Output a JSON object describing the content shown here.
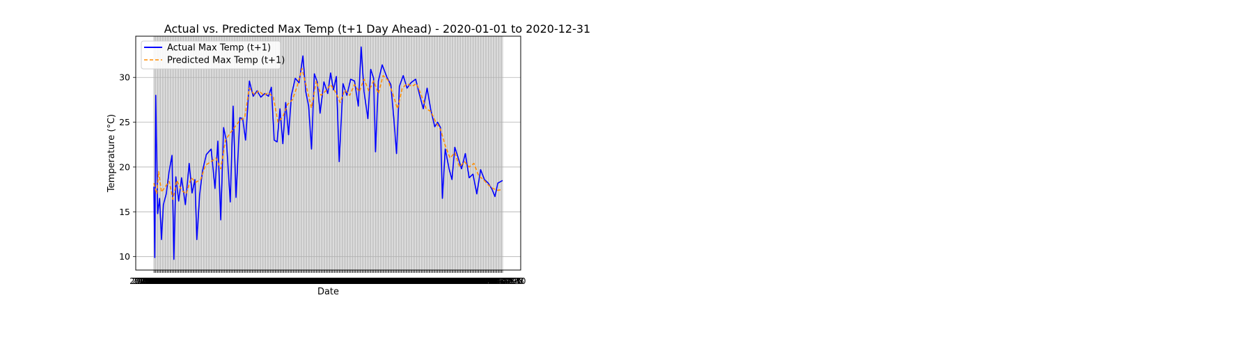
{
  "chart_data": {
    "type": "line",
    "title": "Actual vs. Predicted Max Temp (t+1 Day Ahead) - 2020-01-01 to 2020-12-31",
    "xlabel": "Date",
    "ylabel": "Temperature (°C)",
    "x_range": [
      "2020-01-01",
      "2020-12-31"
    ],
    "ylim": [
      8.5,
      34.6
    ],
    "yticks": [
      10,
      15,
      20,
      25,
      30
    ],
    "grid": true,
    "legend_position": "top-left",
    "series": [
      {
        "name": "Actual Max Temp (t+1)",
        "color": "#0000ff",
        "style": "solid",
        "points": [
          [
            "2020-01-01",
            17.8
          ],
          [
            "2020-01-02",
            9.9
          ],
          [
            "2020-01-03",
            28.0
          ],
          [
            "2020-01-05",
            14.8
          ],
          [
            "2020-01-07",
            16.5
          ],
          [
            "2020-01-09",
            11.9
          ],
          [
            "2020-01-11",
            15.8
          ],
          [
            "2020-01-14",
            17.0
          ],
          [
            "2020-01-17",
            19.5
          ],
          [
            "2020-01-20",
            21.3
          ],
          [
            "2020-01-22",
            9.7
          ],
          [
            "2020-01-24",
            18.9
          ],
          [
            "2020-01-27",
            16.2
          ],
          [
            "2020-01-30",
            18.8
          ],
          [
            "2020-02-03",
            15.8
          ],
          [
            "2020-02-07",
            20.4
          ],
          [
            "2020-02-10",
            17.1
          ],
          [
            "2020-02-13",
            18.6
          ],
          [
            "2020-02-15",
            11.9
          ],
          [
            "2020-02-18",
            17.0
          ],
          [
            "2020-02-21",
            19.6
          ],
          [
            "2020-02-25",
            21.4
          ],
          [
            "2020-03-01",
            22.0
          ],
          [
            "2020-03-05",
            17.6
          ],
          [
            "2020-03-08",
            22.9
          ],
          [
            "2020-03-11",
            14.1
          ],
          [
            "2020-03-14",
            24.4
          ],
          [
            "2020-03-17",
            22.9
          ],
          [
            "2020-03-21",
            16.1
          ],
          [
            "2020-03-24",
            26.8
          ],
          [
            "2020-03-27",
            16.6
          ],
          [
            "2020-03-31",
            25.5
          ],
          [
            "2020-04-03",
            25.4
          ],
          [
            "2020-04-06",
            23.0
          ],
          [
            "2020-04-10",
            29.6
          ],
          [
            "2020-04-14",
            27.9
          ],
          [
            "2020-04-18",
            28.5
          ],
          [
            "2020-04-22",
            27.8
          ],
          [
            "2020-04-26",
            28.2
          ],
          [
            "2020-04-30",
            27.9
          ],
          [
            "2020-05-03",
            28.9
          ],
          [
            "2020-05-06",
            23.0
          ],
          [
            "2020-05-09",
            22.8
          ],
          [
            "2020-05-12",
            26.5
          ],
          [
            "2020-05-15",
            22.6
          ],
          [
            "2020-05-18",
            27.2
          ],
          [
            "2020-05-21",
            23.6
          ],
          [
            "2020-05-24",
            28.0
          ],
          [
            "2020-05-28",
            29.9
          ],
          [
            "2020-06-01",
            29.4
          ],
          [
            "2020-06-05",
            32.4
          ],
          [
            "2020-06-08",
            28.4
          ],
          [
            "2020-06-11",
            26.8
          ],
          [
            "2020-06-14",
            22.0
          ],
          [
            "2020-06-17",
            30.4
          ],
          [
            "2020-06-20",
            29.5
          ],
          [
            "2020-06-23",
            26.0
          ],
          [
            "2020-06-27",
            29.5
          ],
          [
            "2020-07-01",
            28.2
          ],
          [
            "2020-07-04",
            30.5
          ],
          [
            "2020-07-07",
            28.6
          ],
          [
            "2020-07-10",
            30.1
          ],
          [
            "2020-07-13",
            20.6
          ],
          [
            "2020-07-17",
            29.3
          ],
          [
            "2020-07-21",
            28.0
          ],
          [
            "2020-07-25",
            29.8
          ],
          [
            "2020-07-29",
            29.6
          ],
          [
            "2020-08-02",
            26.8
          ],
          [
            "2020-08-05",
            33.4
          ],
          [
            "2020-08-08",
            28.4
          ],
          [
            "2020-08-12",
            25.4
          ],
          [
            "2020-08-15",
            30.9
          ],
          [
            "2020-08-18",
            29.9
          ],
          [
            "2020-08-20",
            21.7
          ],
          [
            "2020-08-23",
            29.6
          ],
          [
            "2020-08-27",
            31.4
          ],
          [
            "2020-09-01",
            30.0
          ],
          [
            "2020-09-05",
            29.2
          ],
          [
            "2020-09-08",
            25.6
          ],
          [
            "2020-09-11",
            21.5
          ],
          [
            "2020-09-14",
            29.0
          ],
          [
            "2020-09-18",
            30.2
          ],
          [
            "2020-09-22",
            28.8
          ],
          [
            "2020-09-26",
            29.4
          ],
          [
            "2020-10-01",
            29.8
          ],
          [
            "2020-10-05",
            28.1
          ],
          [
            "2020-10-09",
            26.5
          ],
          [
            "2020-10-13",
            28.8
          ],
          [
            "2020-10-17",
            26.3
          ],
          [
            "2020-10-21",
            24.5
          ],
          [
            "2020-10-24",
            25.0
          ],
          [
            "2020-10-27",
            24.4
          ],
          [
            "2020-10-29",
            16.5
          ],
          [
            "2020-11-01",
            22.0
          ],
          [
            "2020-11-05",
            19.8
          ],
          [
            "2020-11-08",
            18.6
          ],
          [
            "2020-11-11",
            22.2
          ],
          [
            "2020-11-14",
            21.2
          ],
          [
            "2020-11-18",
            19.8
          ],
          [
            "2020-11-22",
            21.5
          ],
          [
            "2020-11-26",
            18.8
          ],
          [
            "2020-11-30",
            19.2
          ],
          [
            "2020-12-04",
            17.0
          ],
          [
            "2020-12-08",
            19.7
          ],
          [
            "2020-12-12",
            18.6
          ],
          [
            "2020-12-16",
            18.2
          ],
          [
            "2020-12-20",
            17.5
          ],
          [
            "2020-12-23",
            16.7
          ],
          [
            "2020-12-26",
            18.2
          ],
          [
            "2020-12-31",
            18.5
          ]
        ]
      },
      {
        "name": "Predicted Max Temp (t+1)",
        "color": "#ff8c00",
        "style": "dashed",
        "points": [
          [
            "2020-01-01",
            18.2
          ],
          [
            "2020-01-04",
            17.0
          ],
          [
            "2020-01-06",
            19.5
          ],
          [
            "2020-01-09",
            17.2
          ],
          [
            "2020-01-13",
            17.8
          ],
          [
            "2020-01-17",
            18.4
          ],
          [
            "2020-01-21",
            16.4
          ],
          [
            "2020-01-25",
            18.5
          ],
          [
            "2020-01-30",
            17.4
          ],
          [
            "2020-02-04",
            17.0
          ],
          [
            "2020-02-09",
            18.8
          ],
          [
            "2020-02-14",
            18.3
          ],
          [
            "2020-02-19",
            18.6
          ],
          [
            "2020-02-24",
            20.2
          ],
          [
            "2020-03-01",
            20.6
          ],
          [
            "2020-03-06",
            21.0
          ],
          [
            "2020-03-11",
            19.8
          ],
          [
            "2020-03-16",
            23.0
          ],
          [
            "2020-03-21",
            23.8
          ],
          [
            "2020-03-26",
            24.5
          ],
          [
            "2020-03-31",
            25.2
          ],
          [
            "2020-04-05",
            25.5
          ],
          [
            "2020-04-10",
            28.8
          ],
          [
            "2020-04-15",
            28.1
          ],
          [
            "2020-04-20",
            28.5
          ],
          [
            "2020-04-25",
            28.0
          ],
          [
            "2020-04-30",
            28.3
          ],
          [
            "2020-05-05",
            27.8
          ],
          [
            "2020-05-10",
            25.0
          ],
          [
            "2020-05-15",
            25.6
          ],
          [
            "2020-05-20",
            27.0
          ],
          [
            "2020-05-25",
            27.5
          ],
          [
            "2020-05-30",
            29.0
          ],
          [
            "2020-06-04",
            31.0
          ],
          [
            "2020-06-09",
            28.8
          ],
          [
            "2020-06-14",
            26.6
          ],
          [
            "2020-06-19",
            29.6
          ],
          [
            "2020-06-24",
            28.0
          ],
          [
            "2020-06-29",
            28.5
          ],
          [
            "2020-07-04",
            29.2
          ],
          [
            "2020-07-09",
            28.4
          ],
          [
            "2020-07-14",
            27.2
          ],
          [
            "2020-07-19",
            28.6
          ],
          [
            "2020-07-24",
            28.0
          ],
          [
            "2020-07-29",
            29.2
          ],
          [
            "2020-08-03",
            28.4
          ],
          [
            "2020-08-08",
            29.8
          ],
          [
            "2020-08-13",
            28.5
          ],
          [
            "2020-08-18",
            29.6
          ],
          [
            "2020-08-23",
            28.2
          ],
          [
            "2020-08-28",
            30.2
          ],
          [
            "2020-09-02",
            29.7
          ],
          [
            "2020-09-07",
            28.2
          ],
          [
            "2020-09-12",
            26.5
          ],
          [
            "2020-09-17",
            28.8
          ],
          [
            "2020-09-22",
            29.3
          ],
          [
            "2020-09-27",
            29.0
          ],
          [
            "2020-10-02",
            29.3
          ],
          [
            "2020-10-07",
            28.0
          ],
          [
            "2020-10-12",
            26.5
          ],
          [
            "2020-10-17",
            26.2
          ],
          [
            "2020-10-22",
            25.0
          ],
          [
            "2020-10-27",
            24.2
          ],
          [
            "2020-11-01",
            22.4
          ],
          [
            "2020-11-06",
            21.0
          ],
          [
            "2020-11-11",
            21.6
          ],
          [
            "2020-11-16",
            20.0
          ],
          [
            "2020-11-21",
            20.6
          ],
          [
            "2020-11-26",
            20.0
          ],
          [
            "2020-12-01",
            20.4
          ],
          [
            "2020-12-06",
            19.0
          ],
          [
            "2020-12-11",
            18.6
          ],
          [
            "2020-12-16",
            18.0
          ],
          [
            "2020-12-21",
            17.6
          ],
          [
            "2020-12-26",
            17.4
          ],
          [
            "2020-12-31",
            17.5
          ]
        ]
      }
    ]
  }
}
